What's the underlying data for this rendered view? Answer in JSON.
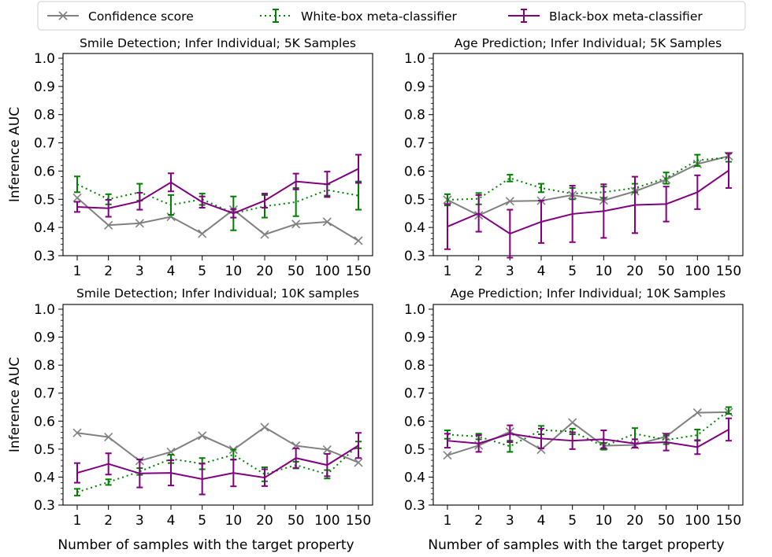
{
  "legend": {
    "items": [
      {
        "label": "Confidence score",
        "color": "#808080",
        "marker": "x",
        "style": "solid"
      },
      {
        "label": "White-box meta-classifier",
        "color": "#008000",
        "marker": "errorbar",
        "style": "dotted"
      },
      {
        "label": "Black-box meta-classifier",
        "color": "#800080",
        "marker": "errorbar",
        "style": "solid"
      }
    ]
  },
  "chart_data": [
    {
      "type": "line",
      "title": "Smile Detection; Infer Individual; 5K Samples",
      "xlabel": "",
      "ylabel": "Inference AUC",
      "categories": [
        "1",
        "2",
        "3",
        "4",
        "5",
        "10",
        "20",
        "50",
        "100",
        "150"
      ],
      "ylim": [
        0.3,
        1.0
      ],
      "yticks": [
        "0.3",
        "0.4",
        "0.5",
        "0.6",
        "0.7",
        "0.8",
        "0.9",
        "1.0"
      ],
      "series": [
        {
          "name": "Confidence score",
          "values": [
            0.505,
            0.408,
            0.415,
            0.438,
            0.378,
            0.463,
            0.375,
            0.412,
            0.42,
            0.353
          ],
          "err": [
            0,
            0,
            0,
            0,
            0,
            0,
            0,
            0,
            0,
            0
          ]
        },
        {
          "name": "White-box meta-classifier",
          "values": [
            0.553,
            0.5,
            0.525,
            0.48,
            0.5,
            0.45,
            0.475,
            0.49,
            0.533,
            0.513
          ],
          "err": [
            0.028,
            0.018,
            0.03,
            0.035,
            0.02,
            0.06,
            0.04,
            0.05,
            0.02,
            0.05
          ]
        },
        {
          "name": "Black-box meta-classifier",
          "values": [
            0.473,
            0.468,
            0.493,
            0.56,
            0.49,
            0.45,
            0.495,
            0.563,
            0.553,
            0.608
          ],
          "err": [
            0.018,
            0.03,
            0.03,
            0.032,
            0.02,
            0.015,
            0.025,
            0.028,
            0.045,
            0.05
          ]
        }
      ]
    },
    {
      "type": "line",
      "title": "Age Prediction; Infer Individual; 5K Samples",
      "xlabel": "",
      "ylabel": "",
      "categories": [
        "1",
        "2",
        "3",
        "4",
        "5",
        "10",
        "20",
        "50",
        "100",
        "150"
      ],
      "ylim": [
        0.3,
        1.0
      ],
      "yticks": [
        "0.3",
        "0.4",
        "0.5",
        "0.6",
        "0.7",
        "0.8",
        "0.9",
        "1.0"
      ],
      "series": [
        {
          "name": "Confidence score",
          "values": [
            0.498,
            0.443,
            0.493,
            0.495,
            0.515,
            0.496,
            0.528,
            0.57,
            0.625,
            0.653
          ],
          "err": [
            0,
            0,
            0,
            0,
            0,
            0,
            0,
            0,
            0,
            0
          ]
        },
        {
          "name": "White-box meta-classifier",
          "values": [
            0.498,
            0.502,
            0.575,
            0.54,
            0.52,
            0.525,
            0.54,
            0.575,
            0.638,
            0.648
          ],
          "err": [
            0.02,
            0.02,
            0.012,
            0.015,
            0.02,
            0.02,
            0.015,
            0.02,
            0.02,
            0.015
          ]
        },
        {
          "name": "Black-box meta-classifier",
          "values": [
            0.403,
            0.45,
            0.378,
            0.42,
            0.448,
            0.458,
            0.48,
            0.483,
            0.525,
            0.602
          ],
          "err": [
            0.08,
            0.065,
            0.085,
            0.075,
            0.1,
            0.095,
            0.1,
            0.062,
            0.06,
            0.062
          ]
        }
      ]
    },
    {
      "type": "line",
      "title": "Smile Detection; Infer Individual; 10K samples",
      "xlabel": "Number of samples with the target property",
      "ylabel": "Inference AUC",
      "categories": [
        "1",
        "2",
        "3",
        "4",
        "5",
        "10",
        "20",
        "50",
        "100",
        "150"
      ],
      "ylim": [
        0.3,
        1.0
      ],
      "yticks": [
        "0.3",
        "0.4",
        "0.5",
        "0.6",
        "0.7",
        "0.8",
        "0.9",
        "1.0"
      ],
      "series": [
        {
          "name": "Confidence score",
          "values": [
            0.558,
            0.543,
            0.458,
            0.49,
            0.548,
            0.498,
            0.578,
            0.512,
            0.498,
            0.452
          ],
          "err": [
            0,
            0,
            0,
            0,
            0,
            0,
            0,
            0,
            0,
            0
          ]
        },
        {
          "name": "White-box meta-classifier",
          "values": [
            0.346,
            0.382,
            0.42,
            0.465,
            0.448,
            0.48,
            0.41,
            0.443,
            0.41,
            0.515
          ],
          "err": [
            0.012,
            0.01,
            0.012,
            0.015,
            0.02,
            0.018,
            0.025,
            0.012,
            0.015,
            0.012
          ]
        },
        {
          "name": "Black-box meta-classifier",
          "values": [
            0.415,
            0.447,
            0.413,
            0.415,
            0.393,
            0.415,
            0.398,
            0.468,
            0.443,
            0.513
          ],
          "err": [
            0.035,
            0.038,
            0.05,
            0.045,
            0.055,
            0.048,
            0.03,
            0.035,
            0.04,
            0.045
          ]
        }
      ]
    },
    {
      "type": "line",
      "title": "Age Prediction; Infer Individual; 10K Samples",
      "xlabel": "Number of samples with the target property",
      "ylabel": "",
      "categories": [
        "1",
        "2",
        "3",
        "4",
        "5",
        "10",
        "20",
        "50",
        "100",
        "150"
      ],
      "ylim": [
        0.3,
        1.0
      ],
      "yticks": [
        "0.3",
        "0.4",
        "0.5",
        "0.6",
        "0.7",
        "0.8",
        "0.9",
        "1.0"
      ],
      "series": [
        {
          "name": "Confidence score",
          "values": [
            0.478,
            0.513,
            0.562,
            0.498,
            0.595,
            0.512,
            0.515,
            0.545,
            0.63,
            0.632
          ],
          "err": [
            0,
            0,
            0,
            0,
            0,
            0,
            0,
            0,
            0,
            0
          ]
        },
        {
          "name": "White-box meta-classifier",
          "values": [
            0.552,
            0.545,
            0.51,
            0.568,
            0.563,
            0.51,
            0.555,
            0.533,
            0.55,
            0.638
          ],
          "err": [
            0.015,
            0.01,
            0.02,
            0.015,
            0.01,
            0.012,
            0.02,
            0.015,
            0.02,
            0.012
          ]
        },
        {
          "name": "Black-box meta-classifier",
          "values": [
            0.53,
            0.52,
            0.555,
            0.538,
            0.53,
            0.535,
            0.52,
            0.525,
            0.507,
            0.57
          ],
          "err": [
            0.025,
            0.03,
            0.03,
            0.035,
            0.03,
            0.032,
            0.015,
            0.03,
            0.025,
            0.04
          ]
        }
      ]
    }
  ]
}
